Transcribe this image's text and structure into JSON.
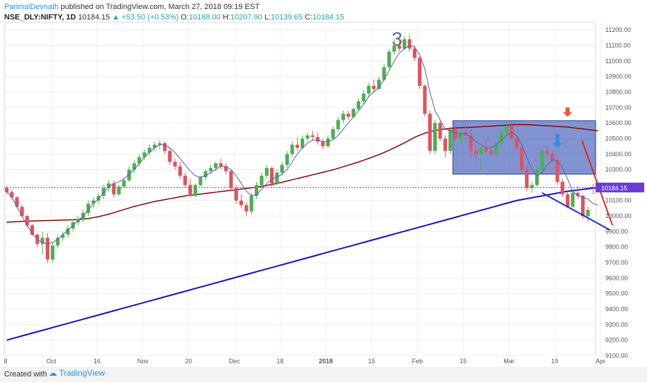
{
  "header": {
    "author": "ParimalDevnath",
    "published": "published on TradingView.com, March 27, 2018 09:19 EST",
    "symbol": "NSE_DLY:NIFTY, 1D",
    "last": "10184.15",
    "change": "▲ +53.50 (+0.53%)",
    "o_label": "O:",
    "o": "10188.00",
    "h_label": "H:",
    "h": "10207.90",
    "l_label": "L:",
    "l": "10139.65",
    "c_label": "C:",
    "c": "10184.15"
  },
  "footer": {
    "created": "Created with",
    "brand": "TradingView"
  },
  "colors": {
    "up": "#4caf50",
    "down": "#e0525e",
    "ma_short": "#5c5ca8",
    "ma_mid": "#8b0000",
    "ma_long": "#1010c8",
    "box": "#3d5ab8",
    "price_line": "#6a3dd9"
  },
  "chart_data": {
    "type": "candlestick",
    "ylim": [
      9100,
      11250
    ],
    "ytick_labels": [
      "11200.00",
      "11100.00",
      "11000.00",
      "10900.00",
      "10800.00",
      "10700.00",
      "10600.00",
      "10500.00",
      "10400.00",
      "10300.00",
      "10200.00",
      "10100.00",
      "10000.00",
      "9900.00",
      "9800.00",
      "9700.00",
      "9600.00",
      "9500.00",
      "9400.00",
      "9300.00",
      "9200.00",
      "9100.00"
    ],
    "yticks": [
      11200,
      11100,
      11000,
      10900,
      10800,
      10700,
      10600,
      10500,
      10400,
      10300,
      10200,
      10100,
      10000,
      9900,
      9800,
      9700,
      9600,
      9500,
      9400,
      9300,
      9200,
      9100
    ],
    "xtick_labels": [
      "8",
      "Oct",
      "16",
      "Nov",
      "20",
      "Dec",
      "18",
      "2018",
      "15",
      "Feb",
      "15",
      "Mar",
      "19",
      "Apr"
    ],
    "annotation_text": "3",
    "price_label": "10184.15",
    "price_level": 10184.15,
    "candles": [
      [
        10180,
        10195,
        10140,
        10155
      ],
      [
        10155,
        10170,
        10110,
        10120
      ],
      [
        10120,
        10130,
        10050,
        10060
      ],
      [
        10060,
        10070,
        9990,
        10000
      ],
      [
        10000,
        10010,
        9930,
        9940
      ],
      [
        9940,
        9950,
        9870,
        9880
      ],
      [
        9880,
        9890,
        9800,
        9820
      ],
      [
        9820,
        9900,
        9750,
        9860
      ],
      [
        9860,
        9890,
        9700,
        9720
      ],
      [
        9720,
        9830,
        9700,
        9810
      ],
      [
        9810,
        9880,
        9790,
        9860
      ],
      [
        9860,
        9900,
        9840,
        9880
      ],
      [
        9880,
        9940,
        9860,
        9920
      ],
      [
        9920,
        9980,
        9900,
        9960
      ],
      [
        9960,
        10000,
        9940,
        9980
      ],
      [
        9980,
        10040,
        9960,
        10020
      ],
      [
        10020,
        10100,
        10000,
        10080
      ],
      [
        10080,
        10120,
        10050,
        10100
      ],
      [
        10100,
        10150,
        10080,
        10130
      ],
      [
        10130,
        10200,
        10110,
        10180
      ],
      [
        10180,
        10230,
        10160,
        10210
      ],
      [
        10210,
        10230,
        10120,
        10140
      ],
      [
        10140,
        10200,
        10130,
        10190
      ],
      [
        10190,
        10250,
        10180,
        10230
      ],
      [
        10230,
        10320,
        10220,
        10300
      ],
      [
        10300,
        10360,
        10280,
        10340
      ],
      [
        10340,
        10400,
        10320,
        10380
      ],
      [
        10380,
        10430,
        10360,
        10410
      ],
      [
        10410,
        10460,
        10390,
        10440
      ],
      [
        10440,
        10480,
        10420,
        10460
      ],
      [
        10460,
        10490,
        10430,
        10470
      ],
      [
        10470,
        10480,
        10400,
        10420
      ],
      [
        10420,
        10440,
        10330,
        10350
      ],
      [
        10350,
        10370,
        10300,
        10320
      ],
      [
        10320,
        10350,
        10240,
        10260
      ],
      [
        10260,
        10280,
        10180,
        10200
      ],
      [
        10200,
        10240,
        10120,
        10130
      ],
      [
        10130,
        10210,
        10120,
        10200
      ],
      [
        10200,
        10260,
        10190,
        10250
      ],
      [
        10250,
        10300,
        10230,
        10290
      ],
      [
        10290,
        10330,
        10270,
        10310
      ],
      [
        10310,
        10350,
        10290,
        10340
      ],
      [
        10340,
        10370,
        10300,
        10320
      ],
      [
        10320,
        10340,
        10270,
        10290
      ],
      [
        10290,
        10300,
        10160,
        10180
      ],
      [
        10180,
        10200,
        10080,
        10100
      ],
      [
        10100,
        10140,
        10050,
        10070
      ],
      [
        10070,
        10090,
        10000,
        10030
      ],
      [
        10030,
        10150,
        10010,
        10130
      ],
      [
        10130,
        10220,
        10110,
        10200
      ],
      [
        10200,
        10280,
        10180,
        10260
      ],
      [
        10260,
        10330,
        10240,
        10310
      ],
      [
        10310,
        10320,
        10190,
        10210
      ],
      [
        10210,
        10300,
        10200,
        10280
      ],
      [
        10280,
        10350,
        10260,
        10330
      ],
      [
        10330,
        10420,
        10310,
        10400
      ],
      [
        10400,
        10480,
        10380,
        10460
      ],
      [
        10460,
        10510,
        10420,
        10440
      ],
      [
        10440,
        10520,
        10430,
        10500
      ],
      [
        10500,
        10540,
        10480,
        10520
      ],
      [
        10520,
        10550,
        10490,
        10510
      ],
      [
        10510,
        10540,
        10460,
        10480
      ],
      [
        10480,
        10500,
        10430,
        10450
      ],
      [
        10450,
        10520,
        10440,
        10500
      ],
      [
        10500,
        10580,
        10490,
        10560
      ],
      [
        10560,
        10640,
        10540,
        10620
      ],
      [
        10620,
        10680,
        10600,
        10660
      ],
      [
        10660,
        10680,
        10620,
        10640
      ],
      [
        10640,
        10700,
        10630,
        10690
      ],
      [
        10690,
        10760,
        10680,
        10740
      ],
      [
        10740,
        10810,
        10720,
        10790
      ],
      [
        10790,
        10860,
        10770,
        10840
      ],
      [
        10840,
        10880,
        10800,
        10820
      ],
      [
        10820,
        10900,
        10810,
        10880
      ],
      [
        10880,
        10980,
        10870,
        10960
      ],
      [
        10960,
        11080,
        10950,
        11060
      ],
      [
        11060,
        11140,
        11040,
        11100
      ],
      [
        11100,
        11150,
        11060,
        11080
      ],
      [
        11080,
        11160,
        11070,
        11140
      ],
      [
        11140,
        11170,
        11060,
        11080
      ],
      [
        11080,
        11100,
        11000,
        11020
      ],
      [
        11020,
        11030,
        10820,
        10840
      ],
      [
        10840,
        10850,
        10640,
        10660
      ],
      [
        10660,
        10680,
        10400,
        10420
      ],
      [
        10420,
        10620,
        10400,
        10600
      ],
      [
        10600,
        10620,
        10480,
        10500
      ],
      [
        10500,
        10520,
        10380,
        10420
      ],
      [
        10420,
        10580,
        10400,
        10560
      ],
      [
        10560,
        10600,
        10480,
        10500
      ],
      [
        10500,
        10560,
        10460,
        10540
      ],
      [
        10540,
        10600,
        10500,
        10520
      ],
      [
        10520,
        10560,
        10380,
        10420
      ],
      [
        10420,
        10460,
        10360,
        10400
      ],
      [
        10400,
        10450,
        10300,
        10440
      ],
      [
        10440,
        10500,
        10400,
        10420
      ],
      [
        10420,
        10460,
        10380,
        10400
      ],
      [
        10400,
        10480,
        10390,
        10470
      ],
      [
        10470,
        10560,
        10450,
        10540
      ],
      [
        10540,
        10600,
        10520,
        10580
      ],
      [
        10580,
        10620,
        10480,
        10500
      ],
      [
        10500,
        10520,
        10420,
        10440
      ],
      [
        10440,
        10460,
        10280,
        10300
      ],
      [
        10300,
        10320,
        10160,
        10180
      ],
      [
        10180,
        10220,
        10150,
        10200
      ],
      [
        10200,
        10320,
        10190,
        10300
      ],
      [
        10300,
        10440,
        10290,
        10420
      ],
      [
        10420,
        10460,
        10380,
        10400
      ],
      [
        10400,
        10420,
        10340,
        10360
      ],
      [
        10360,
        10380,
        10200,
        10220
      ],
      [
        10220,
        10240,
        10120,
        10140
      ],
      [
        10140,
        10160,
        10050,
        10060
      ],
      [
        10060,
        10160,
        10050,
        10150
      ],
      [
        10150,
        10190,
        10110,
        10130
      ],
      [
        10130,
        10140,
        9980,
        10000
      ],
      [
        10000,
        10060,
        9960,
        10040
      ],
      [
        10188,
        10207.9,
        10139.65,
        10184.15
      ]
    ],
    "ma_short_values": [
      10160,
      10120,
      10060,
      10000,
      9940,
      9890,
      9850,
      9830,
      9820,
      9830,
      9850,
      9880,
      9910,
      9940,
      9970,
      10000,
      10040,
      10080,
      10110,
      10150,
      10190,
      10210,
      10220,
      10240,
      10270,
      10300,
      10340,
      10380,
      10410,
      10440,
      10460,
      10460,
      10440,
      10410,
      10370,
      10330,
      10290,
      10260,
      10250,
      10260,
      10280,
      10300,
      10320,
      10320,
      10300,
      10260,
      10210,
      10160,
      10130,
      10140,
      10170,
      10210,
      10240,
      10250,
      10270,
      10300,
      10350,
      10400,
      10440,
      10470,
      10490,
      10490,
      10480,
      10480,
      10490,
      10520,
      10560,
      10600,
      10640,
      10680,
      10720,
      10770,
      10800,
      10830,
      10880,
      10940,
      11000,
      11050,
      11080,
      11100,
      11090,
      11040,
      10950,
      10800,
      10680,
      10620,
      10560,
      10550,
      10540,
      10530,
      10530,
      10510,
      10480,
      10460,
      10440,
      10440,
      10460,
      10490,
      10520,
      10540,
      10520,
      10460,
      10380,
      10300,
      10260,
      10280,
      10330,
      10360,
      10360,
      10310,
      10240,
      10160,
      10130,
      10120,
      10110,
      10080,
      10070
    ],
    "ma_mid_values": [
      9960,
      9962,
      9964,
      9966,
      9967,
      9968,
      9969,
      9970,
      9971,
      9972,
      9973,
      9974,
      9975,
      9976,
      9978,
      9980,
      9984,
      9990,
      9996,
      10004,
      10012,
      10022,
      10032,
      10042,
      10052,
      10062,
      10070,
      10078,
      10086,
      10094,
      10100,
      10106,
      10112,
      10118,
      10124,
      10130,
      10134,
      10138,
      10142,
      10146,
      10150,
      10154,
      10158,
      10162,
      10166,
      10170,
      10174,
      10178,
      10182,
      10186,
      10192,
      10198,
      10204,
      10210,
      10218,
      10226,
      10234,
      10242,
      10250,
      10258,
      10266,
      10274,
      10282,
      10290,
      10298,
      10308,
      10318,
      10328,
      10338,
      10348,
      10360,
      10372,
      10384,
      10396,
      10410,
      10424,
      10440,
      10456,
      10472,
      10490,
      10508,
      10522,
      10534,
      10544,
      10552,
      10558,
      10562,
      10566,
      10568,
      10570,
      10571,
      10572,
      10574,
      10576,
      10578,
      10580,
      10582,
      10584,
      10586,
      10588,
      10590,
      10590,
      10589,
      10588,
      10586,
      10584,
      10582,
      10580,
      10578,
      10576,
      10574,
      10570,
      10566,
      10562,
      10558,
      10554,
      10550
    ],
    "ma_long_values": [
      9200,
      9209,
      9218,
      9227,
      9236,
      9245,
      9254,
      9263,
      9272,
      9281,
      9290,
      9299,
      9308,
      9317,
      9326,
      9335,
      9344,
      9353,
      9362,
      9371,
      9380,
      9389,
      9398,
      9407,
      9416,
      9425,
      9434,
      9443,
      9452,
      9461,
      9470,
      9479,
      9488,
      9497,
      9506,
      9515,
      9524,
      9533,
      9542,
      9551,
      9560,
      9569,
      9578,
      9587,
      9596,
      9605,
      9614,
      9623,
      9632,
      9641,
      9650,
      9659,
      9668,
      9677,
      9686,
      9695,
      9704,
      9713,
      9722,
      9731,
      9740,
      9749,
      9758,
      9767,
      9776,
      9785,
      9794,
      9803,
      9812,
      9821,
      9830,
      9839,
      9848,
      9857,
      9866,
      9875,
      9884,
      9893,
      9902,
      9911,
      9920,
      9929,
      9938,
      9947,
      9956,
      9965,
      9974,
      9983,
      9992,
      10001,
      10010,
      10019,
      10028,
      10037,
      10046,
      10055,
      10064,
      10073,
      10082,
      10091,
      10100,
      10106,
      10112,
      10118,
      10124,
      10130,
      10136,
      10142,
      10148,
      10154,
      10160,
      10164,
      10168,
      10172,
      10176,
      10180,
      10184
    ],
    "box": {
      "y_top": 10615,
      "y_bottom": 10270
    },
    "trendline_red": [
      [
        10520,
        10490
      ],
      [
        10570,
        9940
      ]
    ],
    "trendline_blue": [
      [
        10340,
        10150
      ],
      [
        10570,
        9910
      ]
    ]
  }
}
